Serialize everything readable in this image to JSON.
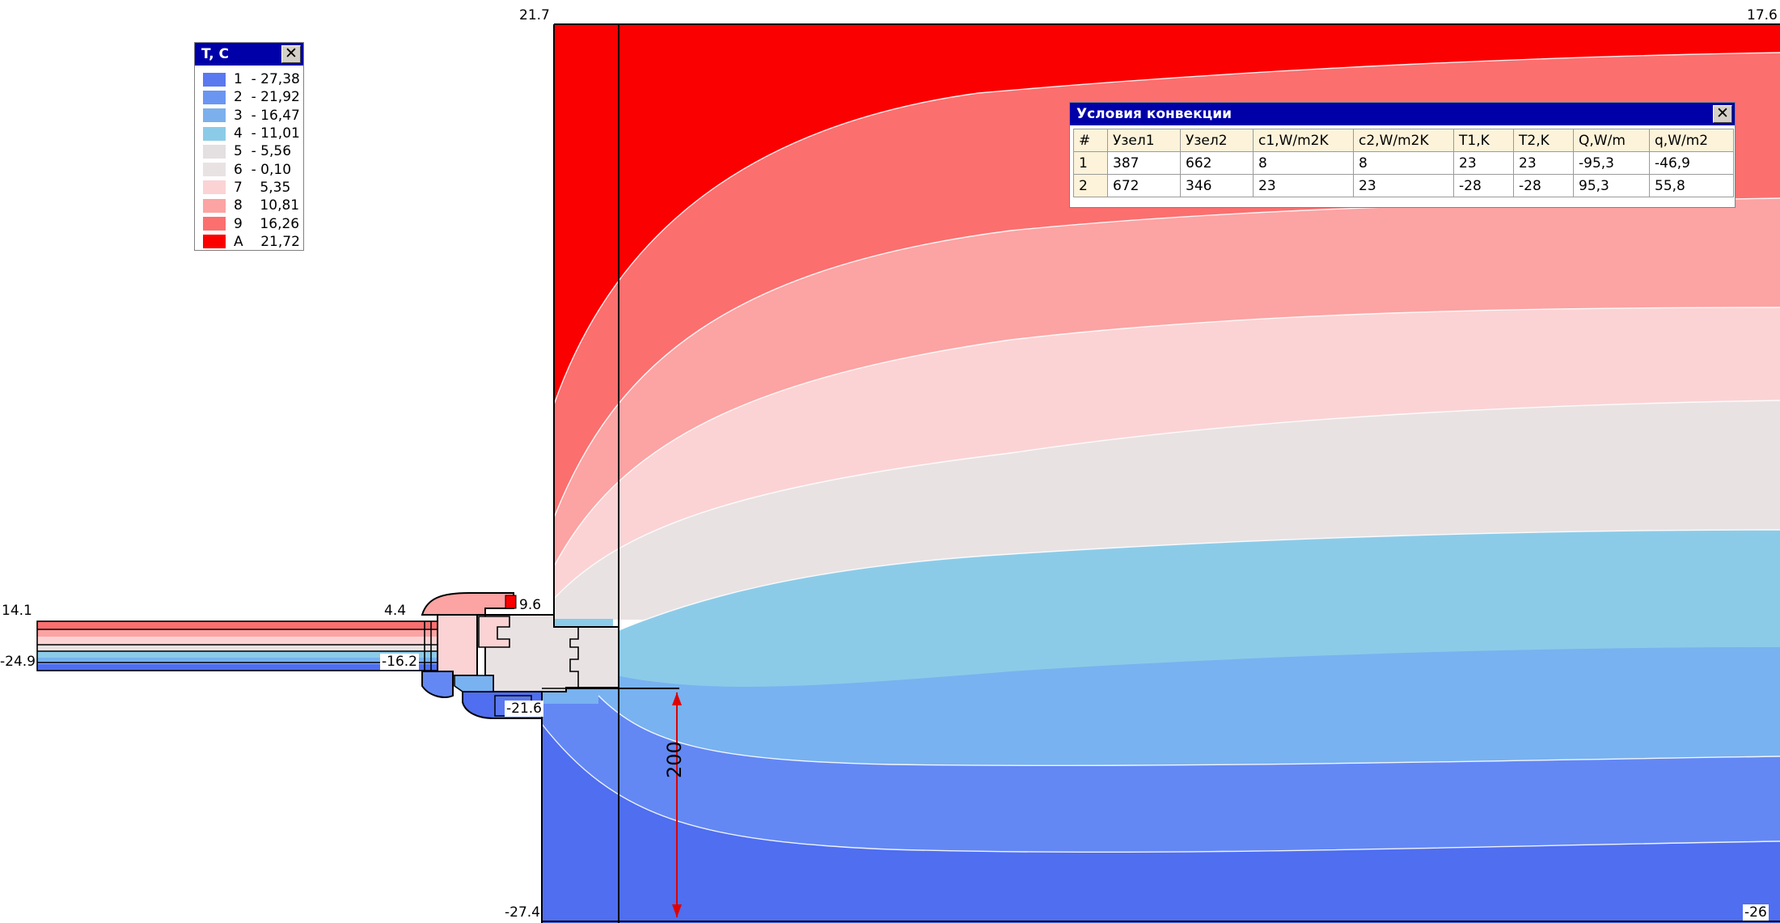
{
  "legend": {
    "title": "T, C",
    "close_icon": "close-icon",
    "items": [
      {
        "text": "1  - 27,38",
        "color": "#5a78f0"
      },
      {
        "text": "2  - 21,92",
        "color": "#6a96f2"
      },
      {
        "text": "3  - 16,47",
        "color": "#7cb0ec"
      },
      {
        "text": "4  - 11,01",
        "color": "#8ccbe8"
      },
      {
        "text": "5  - 5,56",
        "color": "#e4dfe1"
      },
      {
        "text": "6  - 0,10",
        "color": "#e9e2e3"
      },
      {
        "text": "7    5,35",
        "color": "#fbd3d4"
      },
      {
        "text": "8    10,81",
        "color": "#fca3a3"
      },
      {
        "text": "9    16,26",
        "color": "#fb6f6f"
      },
      {
        "text": "A    21,72",
        "color": "#fb0000"
      }
    ]
  },
  "convection": {
    "title": "Условия конвекции",
    "close_icon": "close-icon",
    "columns": [
      "#",
      "Узел1",
      "Узел2",
      "c1,W/m2K",
      "c2,W/m2K",
      "T1,K",
      "T2,K",
      "Q,W/m",
      "q,W/m2"
    ],
    "rows": [
      [
        "1",
        "387",
        "662",
        "8",
        "8",
        "23",
        "23",
        "-95,3",
        "-46,9"
      ],
      [
        "2",
        "672",
        "346",
        "23",
        "23",
        "-28",
        "-28",
        "95,3",
        "55,8"
      ]
    ]
  },
  "values": {
    "top_left": "21.7",
    "top_right": "17.6",
    "glass_top_left": "14.1",
    "glass_bottom_left": "-24.9",
    "glass_top_right": "4.4",
    "glass_bottom_right": "-16.2",
    "frame_top": "9.6",
    "frame_bottom": "-21.6",
    "bottom_left": "-27.4",
    "bottom_right": "-26"
  },
  "dimension": {
    "value": "200",
    "color": "#e00000"
  },
  "colors": {
    "band_red": "#fb0000",
    "band_1": "#fb6f6f",
    "band_2": "#fca3a3",
    "band_3": "#fbd3d4",
    "band_4": "#e9e2e3",
    "band_5": "#8ccbe8",
    "band_6": "#78b2f0",
    "band_7": "#6388f4",
    "band_8": "#4f6ef0",
    "titlebar": "#0000a8"
  }
}
